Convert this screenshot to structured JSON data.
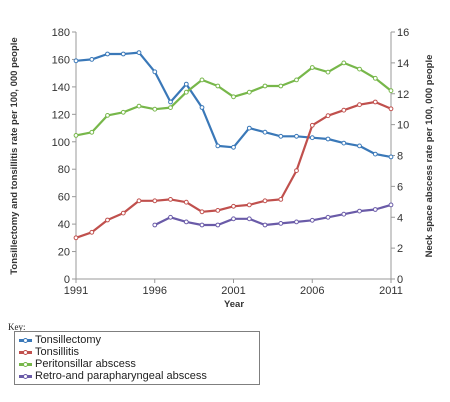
{
  "chart_data": {
    "type": "line",
    "title": "",
    "xlabel": "Year",
    "ylabel": "Tonsillectomy and tonsillitis rate per 100, 000 people",
    "ylabel_right": "Neck space abscess rate per 100, 000 people",
    "xlim": [
      1991,
      2011
    ],
    "ylim": [
      0,
      180
    ],
    "ylim_right": [
      0,
      16
    ],
    "x_ticks": [
      "1991",
      "1996",
      "2001",
      "2006",
      "2011"
    ],
    "y_ticks": [
      "0",
      "20",
      "40",
      "60",
      "80",
      "100",
      "120",
      "140",
      "160",
      "180"
    ],
    "y_ticks_right": [
      "0",
      "2",
      "4",
      "6",
      "8",
      "10",
      "12",
      "14",
      "16"
    ],
    "legend_title": "Key:",
    "legend_position": "bottom-left, below chart",
    "grid": false,
    "series": [
      {
        "name": "Tonsillectomy",
        "axis": "left",
        "color": "#3a78b8",
        "x": [
          1991,
          1992,
          1993,
          1994,
          1995,
          1996,
          1997,
          1998,
          1999,
          2000,
          2001,
          2002,
          2003,
          2004,
          2005,
          2006,
          2007,
          2008,
          2009,
          2010,
          2011
        ],
        "values": [
          159,
          160,
          164,
          164,
          165,
          151,
          129,
          142,
          125,
          97,
          96,
          110,
          107,
          104,
          104,
          103,
          102,
          99,
          97,
          91,
          89
        ]
      },
      {
        "name": "Tonsillitis",
        "axis": "left",
        "color": "#c0504d",
        "x": [
          1991,
          1992,
          1993,
          1994,
          1995,
          1996,
          1997,
          1998,
          1999,
          2000,
          2001,
          2002,
          2003,
          2004,
          2005,
          2006,
          2007,
          2008,
          2009,
          2010,
          2011
        ],
        "values": [
          30,
          34,
          43,
          48,
          57,
          57,
          58,
          56,
          49,
          50,
          53,
          54,
          57,
          58,
          79,
          112,
          119,
          123,
          127,
          129,
          124
        ]
      },
      {
        "name": "Peritonsillar abscess",
        "axis": "right",
        "color": "#77b74a",
        "x": [
          1991,
          1992,
          1993,
          1994,
          1995,
          1996,
          1997,
          1998,
          1999,
          2000,
          2001,
          2002,
          2003,
          2004,
          2005,
          2006,
          2007,
          2008,
          2009,
          2010,
          2011
        ],
        "values": [
          9.3,
          9.5,
          10.6,
          10.8,
          11.2,
          11.0,
          11.1,
          12.1,
          12.9,
          12.5,
          11.8,
          12.1,
          12.5,
          12.5,
          12.9,
          13.7,
          13.4,
          14.0,
          13.6,
          13.0,
          12.2
        ]
      },
      {
        "name": "Retro-and parapharyngeal abscess",
        "axis": "right",
        "color": "#6a5ba8",
        "x": [
          1996,
          1997,
          1998,
          1999,
          2000,
          2001,
          2002,
          2003,
          2004,
          2005,
          2006,
          2007,
          2008,
          2009,
          2010,
          2011
        ],
        "values": [
          3.5,
          4.0,
          3.7,
          3.5,
          3.5,
          3.9,
          3.9,
          3.5,
          3.6,
          3.7,
          3.8,
          4.0,
          4.2,
          4.4,
          4.5,
          4.8
        ]
      }
    ]
  }
}
